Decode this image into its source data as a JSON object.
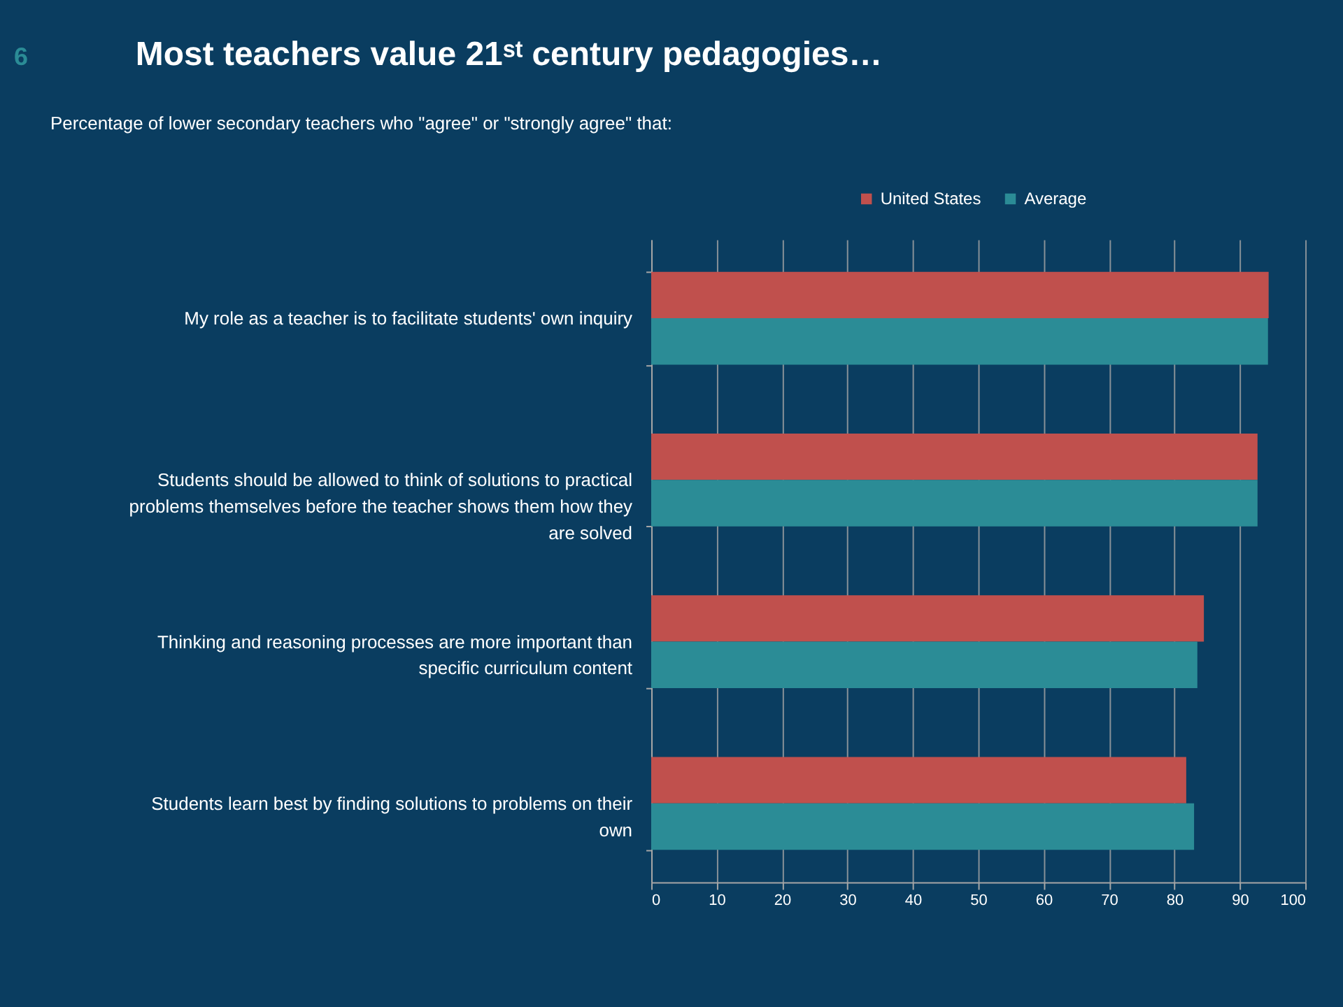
{
  "chart_data": {
    "type": "bar",
    "orientation": "horizontal",
    "title": "Most teachers value 21ˢᵗ century pedagogies…",
    "subtitle": "Percentage of lower secondary teachers who \"agree\" or \"strongly agree\" that:",
    "categories": [
      "My role as a teacher is to facilitate students' own inquiry",
      "Students should be allowed to think of solutions to practical problems themselves before the teacher shows them how they are solved",
      "Thinking and reasoning processes are more important than specific curriculum content",
      "Students learn best by finding solutions to problems on their own"
    ],
    "series": [
      {
        "name": "United States",
        "color": "#c0504d",
        "values": [
          94.4,
          92.7,
          84.5,
          81.8
        ]
      },
      {
        "name": "Average",
        "color": "#2b8c96",
        "values": [
          94.3,
          92.7,
          83.5,
          83.0
        ]
      }
    ],
    "xlim": [
      0,
      100
    ],
    "xticks": [
      0,
      10,
      20,
      30,
      40,
      50,
      60,
      70,
      80,
      90,
      100
    ],
    "grid": "x",
    "legend": "top",
    "annotations": [
      "6"
    ]
  }
}
